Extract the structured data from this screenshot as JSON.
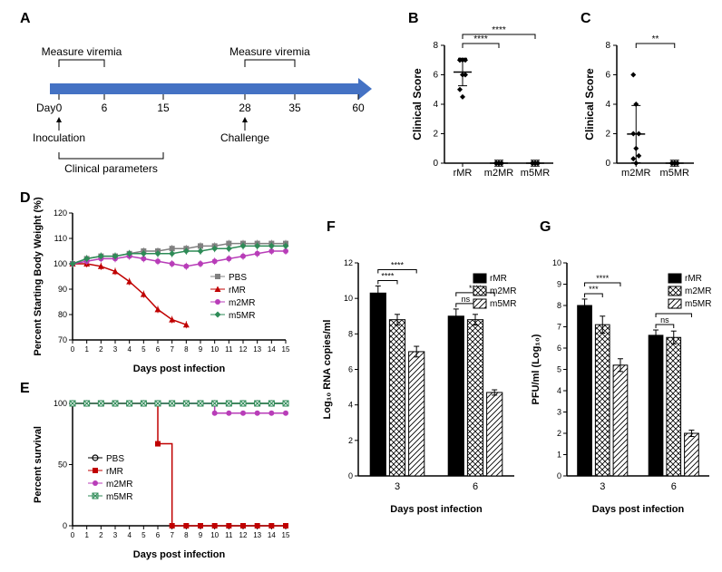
{
  "panelA": {
    "letter": "A",
    "top_labels": [
      "Measure viremia",
      "Measure viremia"
    ],
    "days": [
      "0",
      "6",
      "15",
      "28",
      "35",
      "60"
    ],
    "bottom_labels": [
      "Inoculation",
      "Clinical parameters",
      "Challenge"
    ],
    "day_word": "Day",
    "arrow_color": "#4472c4"
  },
  "panelB": {
    "letter": "B",
    "ylabel": "Clinical Score",
    "ylim": [
      0,
      8
    ],
    "yticks": [
      0,
      2,
      4,
      6,
      8
    ],
    "groups": [
      "rMR",
      "m2MR",
      "m5MR"
    ],
    "points": {
      "rMR": [
        7,
        7,
        7,
        7,
        6,
        6,
        5,
        4.5
      ],
      "m2MR": [
        0,
        0,
        0,
        0,
        0,
        0,
        0,
        0
      ],
      "m5MR": [
        0,
        0,
        0,
        0,
        0,
        0,
        0,
        0
      ]
    },
    "sig": [
      {
        "from": 0,
        "to": 1,
        "label": "****"
      },
      {
        "from": 0,
        "to": 2,
        "label": "****"
      }
    ],
    "marker_color": "#000000"
  },
  "panelC": {
    "letter": "C",
    "ylabel": "Clinical Score",
    "ylim": [
      0,
      8
    ],
    "yticks": [
      0,
      2,
      4,
      6,
      8
    ],
    "groups": [
      "m2MR",
      "m5MR"
    ],
    "points": {
      "m2MR": [
        6,
        4,
        2,
        2,
        1,
        0.5,
        0.3,
        0
      ],
      "m5MR": [
        0,
        0,
        0,
        0,
        0,
        0,
        0,
        0
      ]
    },
    "sig": [
      {
        "from": 0,
        "to": 1,
        "label": "**"
      }
    ],
    "marker_color": "#000000"
  },
  "panelD": {
    "letter": "D",
    "ylabel": "Percent Starting Body Weight (%)",
    "xlabel": "Days post infection",
    "ylim": [
      70,
      120
    ],
    "yticks": [
      70,
      80,
      90,
      100,
      110,
      120
    ],
    "xlim": [
      0,
      15
    ],
    "xticks": [
      0,
      1,
      2,
      3,
      4,
      5,
      6,
      7,
      8,
      9,
      10,
      11,
      12,
      13,
      14,
      15
    ],
    "series": [
      {
        "name": "PBS",
        "color": "#808080",
        "marker": "square",
        "data": [
          100,
          102,
          103,
          103,
          104,
          105,
          105,
          106,
          106,
          107,
          107,
          108,
          108,
          108,
          108,
          108
        ]
      },
      {
        "name": "rMR",
        "color": "#c00000",
        "marker": "triangle",
        "data": [
          100,
          100,
          99,
          97,
          93,
          88,
          82,
          78,
          76,
          null,
          null,
          null,
          null,
          null,
          null,
          null
        ]
      },
      {
        "name": "m2MR",
        "color": "#b83db8",
        "marker": "circle",
        "data": [
          100,
          101,
          102,
          102,
          103,
          102,
          101,
          100,
          99,
          100,
          101,
          102,
          103,
          104,
          105,
          105
        ]
      },
      {
        "name": "m5MR",
        "color": "#2e8b57",
        "marker": "diamond",
        "data": [
          100,
          102,
          103,
          103,
          104,
          104,
          104,
          104,
          105,
          105,
          106,
          106,
          107,
          107,
          107,
          107
        ]
      }
    ]
  },
  "panelE": {
    "letter": "E",
    "ylabel": "Percent survival",
    "xlabel": "Days post infection",
    "ylim": [
      0,
      100
    ],
    "yticks": [
      0,
      50,
      100
    ],
    "xlim": [
      0,
      15
    ],
    "xticks": [
      0,
      1,
      2,
      3,
      4,
      5,
      6,
      7,
      8,
      9,
      10,
      11,
      12,
      13,
      14,
      15
    ],
    "series": [
      {
        "name": "PBS",
        "color": "#000000",
        "marker": "opencircle",
        "data": [
          100,
          100,
          100,
          100,
          100,
          100,
          100,
          100,
          100,
          100,
          100,
          100,
          100,
          100,
          100,
          100
        ]
      },
      {
        "name": "rMR",
        "color": "#c00000",
        "marker": "square",
        "data": [
          100,
          100,
          100,
          100,
          100,
          100,
          67,
          0,
          0,
          0,
          0,
          0,
          0,
          0,
          0,
          0
        ]
      },
      {
        "name": "m2MR",
        "color": "#b83db8",
        "marker": "circle",
        "data": [
          100,
          100,
          100,
          100,
          100,
          100,
          100,
          100,
          100,
          100,
          92,
          92,
          92,
          92,
          92,
          92
        ]
      },
      {
        "name": "m5MR",
        "color": "#2e8b57",
        "marker": "crosssquare",
        "data": [
          100,
          100,
          100,
          100,
          100,
          100,
          100,
          100,
          100,
          100,
          100,
          100,
          100,
          100,
          100,
          100
        ]
      }
    ]
  },
  "panelF": {
    "letter": "F",
    "ylabel": "Log₁₀ RNA copies/ml",
    "xlabel": "Days post infection",
    "ylim": [
      0,
      12
    ],
    "yticks": [
      0,
      2,
      4,
      6,
      8,
      10,
      12
    ],
    "xgroups": [
      "3",
      "6"
    ],
    "series": [
      {
        "name": "rMR",
        "fill": "#000000",
        "pattern": "solid"
      },
      {
        "name": "m2MR",
        "fill": "#ffffff",
        "pattern": "cross"
      },
      {
        "name": "m5MR",
        "fill": "#ffffff",
        "pattern": "diag"
      }
    ],
    "values": {
      "3": [
        10.3,
        8.8,
        7.0
      ],
      "6": [
        9.0,
        8.8,
        4.7
      ]
    },
    "errors": {
      "3": [
        0.4,
        0.3,
        0.3
      ],
      "6": [
        0.4,
        0.3,
        0.15
      ]
    },
    "sig": [
      {
        "day": "3",
        "from": 0,
        "to": 1,
        "label": "****"
      },
      {
        "day": "3",
        "from": 0,
        "to": 2,
        "label": "****"
      },
      {
        "day": "6",
        "from": 0,
        "to": 1,
        "label": "ns"
      },
      {
        "day": "6",
        "from": 0,
        "to": 2,
        "label": "****"
      }
    ]
  },
  "panelG": {
    "letter": "G",
    "ylabel": "PFU/ml (Log₁₀)",
    "xlabel": "Days post infection",
    "ylim": [
      0,
      10
    ],
    "yticks": [
      0,
      1,
      2,
      3,
      4,
      5,
      6,
      7,
      8,
      9,
      10
    ],
    "xgroups": [
      "3",
      "6"
    ],
    "series": [
      {
        "name": "rMR",
        "fill": "#000000",
        "pattern": "solid"
      },
      {
        "name": "m2MR",
        "fill": "#ffffff",
        "pattern": "cross"
      },
      {
        "name": "m5MR",
        "fill": "#ffffff",
        "pattern": "diag"
      }
    ],
    "values": {
      "3": [
        8.0,
        7.1,
        5.2
      ],
      "6": [
        6.6,
        6.5,
        2.0
      ]
    },
    "errors": {
      "3": [
        0.3,
        0.4,
        0.3
      ],
      "6": [
        0.25,
        0.3,
        0.15
      ]
    },
    "sig": [
      {
        "day": "3",
        "from": 0,
        "to": 1,
        "label": "***"
      },
      {
        "day": "3",
        "from": 0,
        "to": 2,
        "label": "****"
      },
      {
        "day": "6",
        "from": 0,
        "to": 1,
        "label": "ns"
      },
      {
        "day": "6",
        "from": 0,
        "to": 2,
        "label": "****"
      }
    ]
  },
  "colors": {
    "axis": "#000000",
    "background": "#ffffff"
  }
}
